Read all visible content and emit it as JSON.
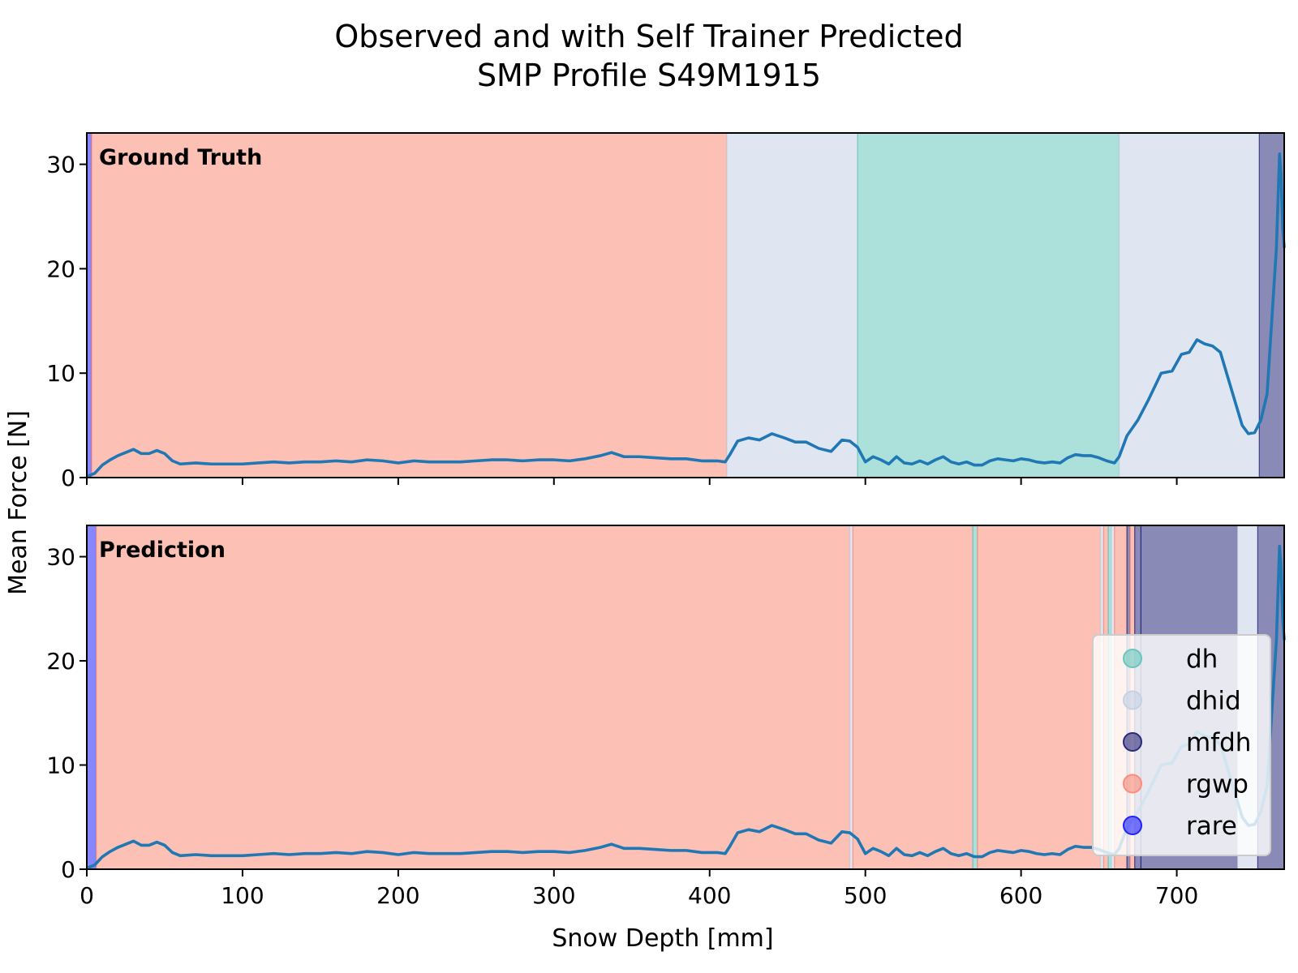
{
  "chart_data": {
    "type": "line",
    "title_lines": [
      "Observed and with Self Trainer Predicted",
      "SMP Profile S49M1915"
    ],
    "xlabel": "Snow Depth [mm]",
    "ylabel": "Mean Force [N]",
    "xlim": [
      0,
      769
    ],
    "ylim": [
      0,
      33
    ],
    "xticks": [
      0,
      100,
      200,
      300,
      400,
      500,
      600,
      700
    ],
    "yticks": [
      0,
      10,
      20,
      30
    ],
    "grade_colors": {
      "dh": "#66c7be",
      "dhid": "#c4d1e5",
      "mfdh": "#2a2a7a",
      "rgwp": "#fa8c79",
      "rare": "#2222ff"
    },
    "series": [
      {
        "name": "Mean Force",
        "color": "#1f77b4",
        "x": [
          0,
          5,
          10,
          15,
          20,
          25,
          30,
          35,
          40,
          45,
          50,
          55,
          60,
          70,
          80,
          90,
          100,
          110,
          120,
          130,
          140,
          150,
          160,
          170,
          180,
          190,
          200,
          210,
          220,
          230,
          240,
          250,
          260,
          270,
          280,
          290,
          300,
          310,
          320,
          330,
          337,
          345,
          355,
          365,
          375,
          385,
          395,
          405,
          410,
          413,
          418,
          425,
          432,
          440,
          448,
          455,
          462,
          470,
          478,
          485,
          490,
          495,
          500,
          505,
          510,
          515,
          520,
          525,
          530,
          535,
          540,
          545,
          550,
          555,
          560,
          565,
          570,
          575,
          580,
          585,
          590,
          595,
          600,
          605,
          610,
          615,
          620,
          625,
          630,
          635,
          640,
          645,
          650,
          655,
          660,
          663,
          668,
          675,
          682,
          690,
          697,
          703,
          708,
          713,
          718,
          723,
          728,
          733,
          738,
          742,
          746,
          750,
          754,
          758,
          761,
          764,
          766,
          767,
          768,
          769
        ],
        "y": [
          0.1,
          0.4,
          1.2,
          1.7,
          2.1,
          2.4,
          2.7,
          2.3,
          2.3,
          2.6,
          2.3,
          1.6,
          1.3,
          1.4,
          1.3,
          1.3,
          1.3,
          1.4,
          1.5,
          1.4,
          1.5,
          1.5,
          1.6,
          1.5,
          1.7,
          1.6,
          1.4,
          1.6,
          1.5,
          1.5,
          1.5,
          1.6,
          1.7,
          1.7,
          1.6,
          1.7,
          1.7,
          1.6,
          1.8,
          2.1,
          2.4,
          2.0,
          2.0,
          1.9,
          1.8,
          1.8,
          1.6,
          1.6,
          1.5,
          2.2,
          3.5,
          3.8,
          3.6,
          4.2,
          3.8,
          3.4,
          3.4,
          2.8,
          2.5,
          3.6,
          3.5,
          2.9,
          1.5,
          2.0,
          1.7,
          1.3,
          2.0,
          1.4,
          1.3,
          1.6,
          1.3,
          1.7,
          2.0,
          1.5,
          1.3,
          1.5,
          1.2,
          1.2,
          1.6,
          1.8,
          1.7,
          1.6,
          1.8,
          1.7,
          1.5,
          1.4,
          1.5,
          1.4,
          1.9,
          2.2,
          2.1,
          2.1,
          1.9,
          1.6,
          1.4,
          2.0,
          4.0,
          5.5,
          7.5,
          10.0,
          10.2,
          11.8,
          12.0,
          13.2,
          12.8,
          12.6,
          12.0,
          9.5,
          7.0,
          5.0,
          4.2,
          4.3,
          5.5,
          8.0,
          15.0,
          22.0,
          31.0,
          29.0,
          24.0,
          22.0
        ]
      }
    ],
    "panels": [
      {
        "label": "Ground Truth",
        "segments": [
          {
            "x0": 0,
            "x1": 3,
            "grade": "rare"
          },
          {
            "x0": 3,
            "x1": 411,
            "grade": "rgwp"
          },
          {
            "x0": 411,
            "x1": 495,
            "grade": "dhid"
          },
          {
            "x0": 495,
            "x1": 663,
            "grade": "dh"
          },
          {
            "x0": 663,
            "x1": 753,
            "grade": "dhid"
          },
          {
            "x0": 753,
            "x1": 769,
            "grade": "mfdh"
          }
        ]
      },
      {
        "label": "Prediction",
        "segments": [
          {
            "x0": 0,
            "x1": 6,
            "grade": "rare"
          },
          {
            "x0": 6,
            "x1": 490,
            "grade": "rgwp"
          },
          {
            "x0": 490,
            "x1": 492,
            "grade": "dhid"
          },
          {
            "x0": 492,
            "x1": 569,
            "grade": "rgwp"
          },
          {
            "x0": 569,
            "x1": 572,
            "grade": "dh"
          },
          {
            "x0": 572,
            "x1": 651,
            "grade": "rgwp"
          },
          {
            "x0": 651,
            "x1": 653,
            "grade": "dhid"
          },
          {
            "x0": 653,
            "x1": 656,
            "grade": "rgwp"
          },
          {
            "x0": 656,
            "x1": 658,
            "grade": "dh"
          },
          {
            "x0": 658,
            "x1": 660,
            "grade": "dhid"
          },
          {
            "x0": 660,
            "x1": 668,
            "grade": "rgwp"
          },
          {
            "x0": 668,
            "x1": 670,
            "grade": "mfdh"
          },
          {
            "x0": 670,
            "x1": 673,
            "grade": "rgwp"
          },
          {
            "x0": 673,
            "x1": 677,
            "grade": "mfdh"
          },
          {
            "x0": 677,
            "x1": 739,
            "grade": "mfdh"
          },
          {
            "x0": 739,
            "x1": 752,
            "grade": "dhid"
          },
          {
            "x0": 752,
            "x1": 769,
            "grade": "mfdh"
          }
        ]
      }
    ],
    "legend": {
      "placement": "lower-right of bottom panel",
      "entries": [
        "dh",
        "dhid",
        "mfdh",
        "rgwp",
        "rare"
      ]
    }
  }
}
